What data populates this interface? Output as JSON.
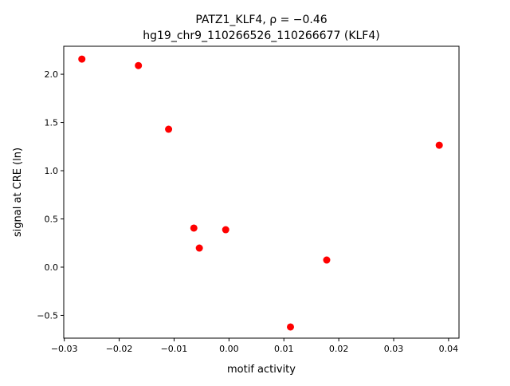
{
  "chart_data": {
    "type": "scatter",
    "title_line1": "PATZ1_KLF4, ρ = −0.46",
    "title_line2": "hg19_chr9_110266526_110266677 (KLF4)",
    "xlabel": "motif activity",
    "ylabel": "signal at CRE (ln)",
    "xlim": [
      -0.0301,
      0.0419
    ],
    "ylim": [
      -0.736,
      2.29
    ],
    "xticks": [
      -0.03,
      -0.02,
      -0.01,
      0.0,
      0.01,
      0.02,
      0.03,
      0.04
    ],
    "xtick_labels": [
      "−0.03",
      "−0.02",
      "−0.01",
      "0.00",
      "0.01",
      "0.02",
      "0.03",
      "0.04"
    ],
    "yticks": [
      -0.5,
      0.0,
      0.5,
      1.0,
      1.5,
      2.0
    ],
    "ytick_labels": [
      "−0.5",
      "0.0",
      "0.5",
      "1.0",
      "1.5",
      "2.0"
    ],
    "grid": false,
    "marker_color": "#ff0000",
    "points": [
      {
        "x": -0.0268,
        "y": 2.157
      },
      {
        "x": -0.0165,
        "y": 2.09
      },
      {
        "x": -0.011,
        "y": 1.43
      },
      {
        "x": -0.0064,
        "y": 0.405
      },
      {
        "x": -0.0054,
        "y": 0.198
      },
      {
        "x": -0.0006,
        "y": 0.388
      },
      {
        "x": 0.0112,
        "y": -0.62
      },
      {
        "x": 0.0178,
        "y": 0.074
      },
      {
        "x": 0.0383,
        "y": 1.264
      }
    ]
  }
}
